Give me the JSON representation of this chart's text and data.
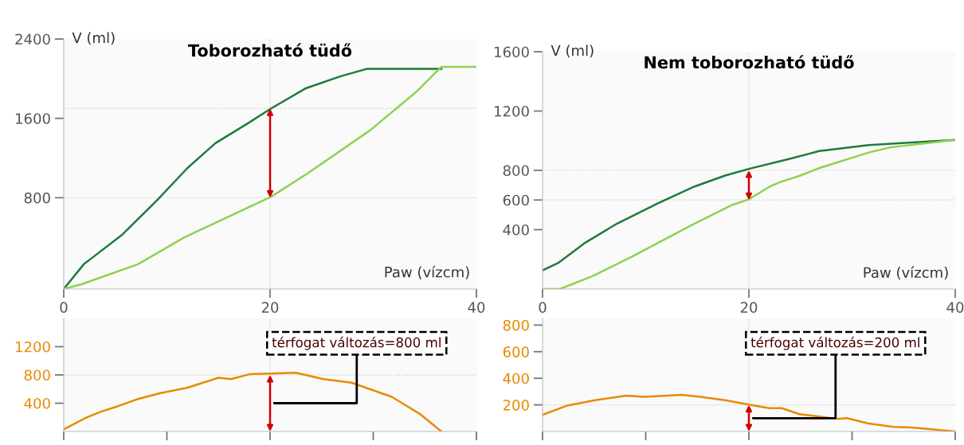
{
  "chart_data": [
    {
      "type": "line",
      "title": "Toborozható tüdő",
      "xlabel": "Paw (vízcm)",
      "ylabel": "V (ml)",
      "xlim": [
        0,
        40
      ],
      "xticks": [
        0,
        20,
        40
      ],
      "ylim": [
        -120,
        2400
      ],
      "yticks": [
        800,
        1600,
        2400
      ],
      "series": [
        {
          "color": "#1e7b3c",
          "x": [
            0,
            1.95,
            2.7,
            5.7,
            9.0,
            12.0,
            14.7,
            17.7,
            20.1,
            23.4,
            26.7,
            29.4,
            36.6
          ],
          "values": [
            -120,
            130,
            190,
            430,
            770,
            1100,
            1350,
            1540,
            1700,
            1900,
            2020,
            2100,
            2100
          ]
        },
        {
          "color": "#8fd14f",
          "x": [
            0,
            1.8,
            7.2,
            11.7,
            20.1,
            23.7,
            29.7,
            34.2,
            36.6,
            40
          ],
          "values": [
            -120,
            -70,
            130,
            400,
            810,
            1050,
            1480,
            1870,
            2120,
            2120
          ]
        }
      ],
      "ref_lines": [
        {
          "axis": "y",
          "value": 1700,
          "color": "#c8c8c8",
          "line_style": "dotted"
        },
        {
          "axis": "y",
          "value": 800,
          "color": "#c8c8c8",
          "line_style": "dotted"
        },
        {
          "axis": "x",
          "value": 20,
          "color": "#c8c8c8",
          "line_style": "dotted"
        }
      ]
    },
    {
      "type": "line",
      "title": "Nem toborozható tüdő",
      "xlabel": "Paw (vízcm)",
      "ylabel": "V (ml)",
      "xlim": [
        0,
        40
      ],
      "xticks": [
        0,
        20,
        40
      ],
      "ylim": [
        0,
        1600
      ],
      "yticks": [
        400,
        600,
        800,
        1200,
        1600
      ],
      "series": [
        {
          "color": "#1e7b3c",
          "x": [
            0,
            1.5,
            4.2,
            7.2,
            11.1,
            14.7,
            17.7,
            20,
            23.8,
            26.8,
            31.6,
            40
          ],
          "values": [
            125,
            175,
            315,
            440,
            575,
            690,
            765,
            810,
            875,
            930,
            970,
            1005
          ]
        },
        {
          "color": "#8fd14f",
          "x": [
            0,
            1.7,
            4.8,
            8.7,
            11.7,
            14.7,
            18.3,
            20,
            22.0,
            23.0,
            25.0,
            26.8,
            31.6,
            33.7,
            40
          ],
          "values": [
            0,
            0,
            85,
            220,
            330,
            440,
            565,
            605,
            690,
            720,
            765,
            815,
            920,
            955,
            1005
          ]
        }
      ],
      "ref_lines": [
        {
          "axis": "y",
          "value": 800,
          "color": "#c8c8c8",
          "line_style": "dotted"
        },
        {
          "axis": "y",
          "value": 600,
          "color": "#c8c8c8",
          "line_style": "dotted"
        },
        {
          "axis": "x",
          "value": 20,
          "color": "#c8c8c8",
          "line_style": "dotted"
        }
      ]
    },
    {
      "type": "line",
      "xlim": [
        0,
        40
      ],
      "xticks": [
        0,
        10,
        20,
        30,
        40
      ],
      "ylim": [
        0,
        1600
      ],
      "yticks": [
        400,
        800,
        1200
      ],
      "tick_labels": "y",
      "series": [
        {
          "color": "#e88a00",
          "x": [
            0,
            2.1,
            3.6,
            5.1,
            7.2,
            9.3,
            12.0,
            15.0,
            16.2,
            18.0,
            20.1,
            22.5,
            25.2,
            27.9,
            31.8,
            34.5,
            36.6
          ],
          "values": [
            30,
            190,
            280,
            350,
            460,
            540,
            620,
            760,
            740,
            810,
            820,
            830,
            740,
            690,
            490,
            250,
            0
          ]
        }
      ],
      "annotations": [
        "térfogat változás=800 ml"
      ],
      "ref_lines": [
        {
          "axis": "y",
          "value": 800,
          "color": "#c8c8c8",
          "line_style": "dotted"
        },
        {
          "axis": "x",
          "value": 20,
          "color": "#c8c8c8",
          "line_style": "dotted"
        }
      ]
    },
    {
      "type": "line",
      "xlim": [
        0,
        40
      ],
      "xticks": [
        0,
        10,
        20,
        30,
        40
      ],
      "ylim": [
        0,
        850
      ],
      "yticks": [
        200,
        400,
        600,
        800
      ],
      "tick_labels": "y",
      "series": [
        {
          "color": "#e88a00",
          "x": [
            0,
            2.4,
            5.1,
            8.1,
            9.9,
            13.5,
            15.3,
            17.7,
            20.1,
            22.0,
            23.2,
            24.9,
            28.6,
            29.5,
            31.6,
            34.0,
            35.8,
            40
          ],
          "values": [
            125,
            195,
            235,
            270,
            260,
            275,
            260,
            235,
            200,
            175,
            175,
            130,
            95,
            100,
            60,
            35,
            30,
            0
          ]
        }
      ],
      "annotations": [
        "térfogat változás=200 ml"
      ],
      "ref_lines": [
        {
          "axis": "y",
          "value": 200,
          "color": "#c8c8c8",
          "line_style": "dotted"
        },
        {
          "axis": "x",
          "value": 20,
          "color": "#c8c8c8",
          "line_style": "dotted"
        }
      ]
    }
  ]
}
